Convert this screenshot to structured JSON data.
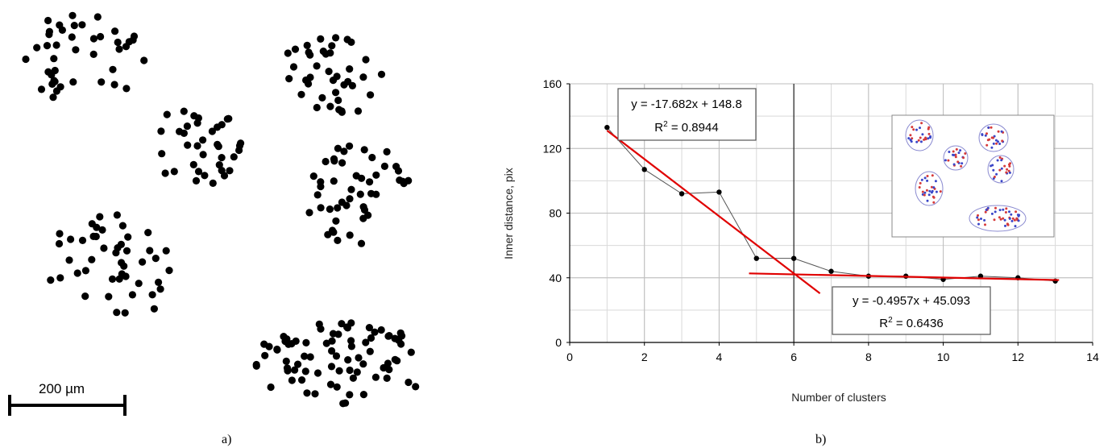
{
  "panels": {
    "left_label": "a)",
    "right_label": "b)"
  },
  "scale_bar": {
    "label": "200 µm",
    "length_um": 200
  },
  "chart_data": {
    "type": "scatter",
    "xlabel": "Number of clusters",
    "ylabel": "Inner distance, pix",
    "xlim": [
      0,
      14
    ],
    "ylim": [
      0,
      160
    ],
    "xticks": [
      0,
      2,
      4,
      6,
      8,
      10,
      12,
      14
    ],
    "yticks": [
      0,
      40,
      80,
      120,
      160
    ],
    "grid": true,
    "series": [
      {
        "x": [
          1,
          2,
          3,
          4,
          5,
          6,
          7,
          8,
          9,
          10,
          11,
          12,
          13
        ],
        "y": [
          133,
          107,
          92,
          93,
          52,
          52,
          44,
          41,
          41,
          39,
          41,
          40,
          38
        ],
        "color": "#555555"
      }
    ],
    "fits": [
      {
        "equation": "y = -17.682x + 148.8",
        "r2_prefix": "R",
        "r2_sup": "2",
        "r2_value": " = 0.8944",
        "slope": -17.682,
        "intercept": 148.8,
        "x_range": [
          1,
          6.7
        ],
        "color": "#e00000"
      },
      {
        "equation": "y = -0.4957x + 45.093",
        "r2_prefix": "R",
        "r2_sup": "2",
        "r2_value": " = 0.6436",
        "slope": -0.4957,
        "intercept": 45.093,
        "x_range": [
          4.8,
          13.1
        ],
        "color": "#e00000"
      }
    ],
    "vertical_marker_x": 6
  }
}
